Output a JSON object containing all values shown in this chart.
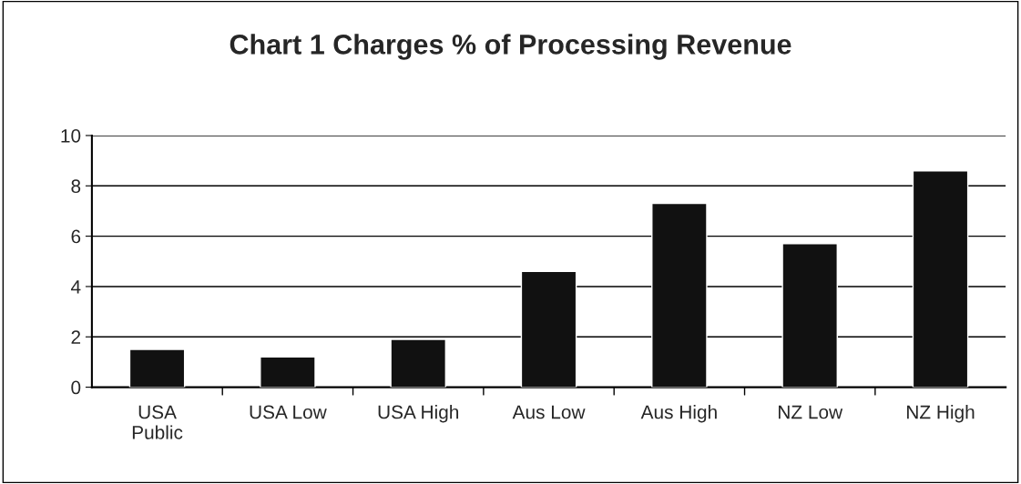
{
  "chart_data": {
    "type": "bar",
    "title": "Chart 1 Charges % of Processing Revenue",
    "categories": [
      "USA\nPublic",
      "USA Low",
      "USA High",
      "Aus Low",
      "Aus High",
      "NZ Low",
      "NZ High"
    ],
    "values": [
      1.5,
      1.2,
      1.9,
      4.6,
      7.3,
      5.7,
      8.6
    ],
    "color": "#111111",
    "ylim": [
      0,
      10
    ],
    "yticks": [
      0,
      2,
      4,
      6,
      8,
      10
    ],
    "grid": "y"
  }
}
